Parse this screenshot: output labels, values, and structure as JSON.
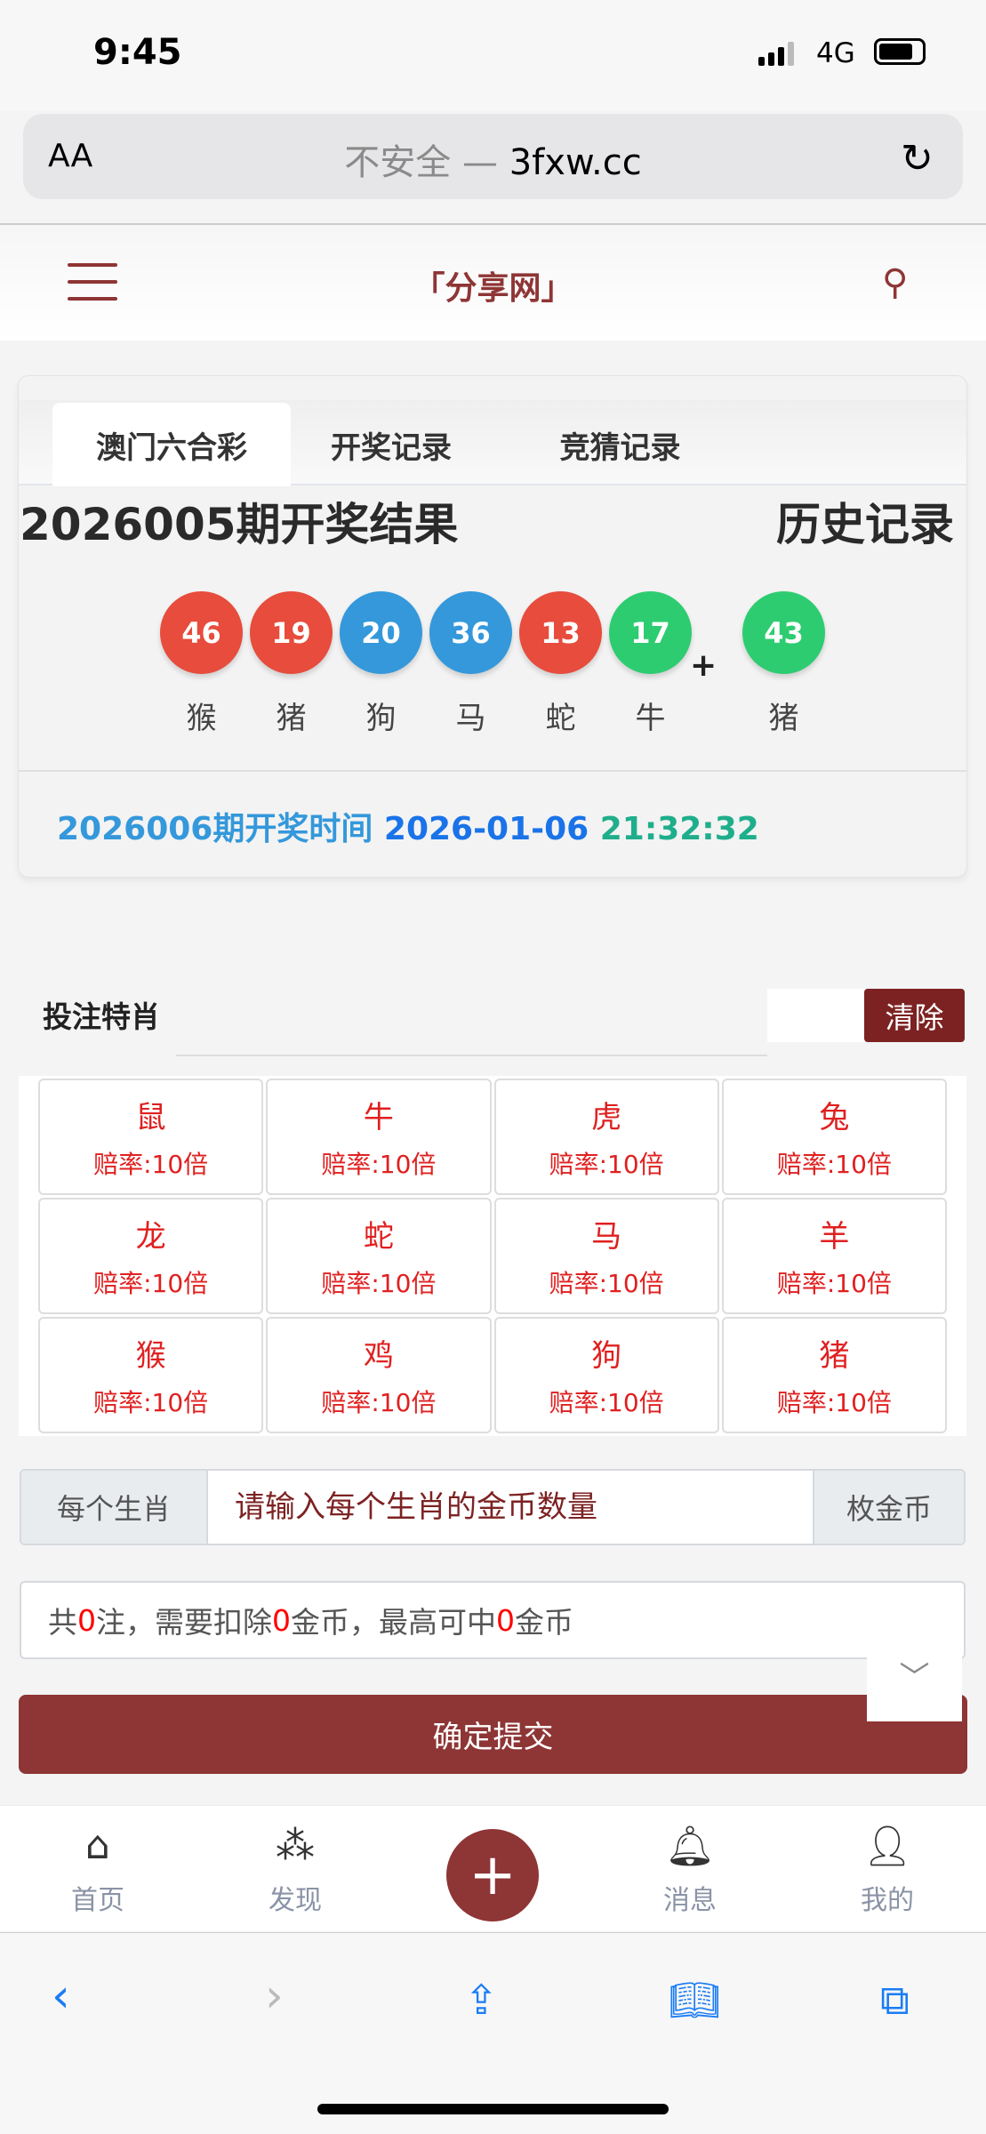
{
  "status": {
    "time": "9:45",
    "network": "4G"
  },
  "browser": {
    "text_size": "AA",
    "insecure": "不安全",
    "separator": "—",
    "domain": "3fxw.cc"
  },
  "header": {
    "brand": "「分享网」"
  },
  "tabs": [
    {
      "label": "澳门六合彩",
      "active": true
    },
    {
      "label": "开奖记录"
    },
    {
      "label": "竞猜记录"
    }
  ],
  "result": {
    "title": "2026005期开奖结果",
    "history": "历史记录",
    "balls": [
      {
        "num": "46",
        "zodiac": "猴",
        "color": "#e74c3c"
      },
      {
        "num": "19",
        "zodiac": "猪",
        "color": "#e74c3c"
      },
      {
        "num": "20",
        "zodiac": "狗",
        "color": "#3498db"
      },
      {
        "num": "36",
        "zodiac": "马",
        "color": "#3498db"
      },
      {
        "num": "13",
        "zodiac": "蛇",
        "color": "#e74c3c"
      },
      {
        "num": "17",
        "zodiac": "牛",
        "color": "#2ecc71"
      }
    ],
    "plus": "+",
    "special": {
      "num": "43",
      "zodiac": "猪",
      "color": "#2ecc71"
    }
  },
  "next": {
    "label": "2026006期开奖时间",
    "date": "2026-01-06",
    "time": "21:32:32"
  },
  "bet": {
    "label": "投注特肖",
    "clear": "清除",
    "zodiacs": [
      {
        "name": "鼠",
        "odds": "赔率:10倍"
      },
      {
        "name": "牛",
        "odds": "赔率:10倍"
      },
      {
        "name": "虎",
        "odds": "赔率:10倍"
      },
      {
        "name": "兔",
        "odds": "赔率:10倍"
      },
      {
        "name": "龙",
        "odds": "赔率:10倍"
      },
      {
        "name": "蛇",
        "odds": "赔率:10倍"
      },
      {
        "name": "马",
        "odds": "赔率:10倍"
      },
      {
        "name": "羊",
        "odds": "赔率:10倍"
      },
      {
        "name": "猴",
        "odds": "赔率:10倍"
      },
      {
        "name": "鸡",
        "odds": "赔率:10倍"
      },
      {
        "name": "狗",
        "odds": "赔率:10倍"
      },
      {
        "name": "猪",
        "odds": "赔率:10倍"
      }
    ],
    "prefix": "每个生肖",
    "placeholder": "请输入每个生肖的金币数量",
    "suffix": "枚金币",
    "summary": {
      "p1": "共",
      "count": "0",
      "p2": "注，需要扣除",
      "cost": "0",
      "p3": "金币，最高可中",
      "win": "0",
      "p4": "金币"
    },
    "submit": "确定提交"
  },
  "tabbar": [
    {
      "label": "首页",
      "icon": "home-icon"
    },
    {
      "label": "发现",
      "icon": "grid-icon"
    },
    {
      "label": "消息",
      "icon": "bell-icon"
    },
    {
      "label": "我的",
      "icon": "user-icon"
    }
  ],
  "accent": "#8e3535"
}
